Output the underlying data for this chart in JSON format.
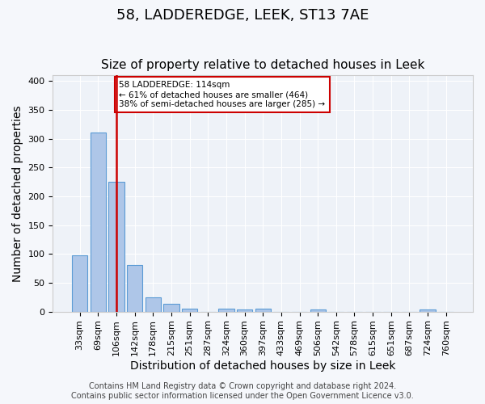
{
  "title": "58, LADDEREDGE, LEEK, ST13 7AE",
  "subtitle": "Size of property relative to detached houses in Leek",
  "xlabel": "Distribution of detached houses by size in Leek",
  "ylabel": "Number of detached properties",
  "bar_color": "#aec6e8",
  "bar_edge_color": "#5b9bd5",
  "background_color": "#eef2f8",
  "grid_color": "#ffffff",
  "categories": [
    "33sqm",
    "69sqm",
    "106sqm",
    "142sqm",
    "178sqm",
    "215sqm",
    "251sqm",
    "287sqm",
    "324sqm",
    "360sqm",
    "397sqm",
    "433sqm",
    "469sqm",
    "506sqm",
    "542sqm",
    "578sqm",
    "615sqm",
    "651sqm",
    "687sqm",
    "724sqm",
    "760sqm"
  ],
  "values": [
    98,
    311,
    225,
    81,
    25,
    14,
    5,
    0,
    5,
    4,
    5,
    0,
    0,
    3,
    0,
    0,
    0,
    0,
    0,
    3,
    0
  ],
  "vline_x": 2,
  "vline_color": "#cc0000",
  "ylim": [
    0,
    410
  ],
  "yticks": [
    0,
    50,
    100,
    150,
    200,
    250,
    300,
    350,
    400
  ],
  "annotation_title": "58 LADDEREDGE: 114sqm",
  "annotation_line1": "← 61% of detached houses are smaller (464)",
  "annotation_line2": "38% of semi-detached houses are larger (285) →",
  "footer_line1": "Contains HM Land Registry data © Crown copyright and database right 2024.",
  "footer_line2": "Contains public sector information licensed under the Open Government Licence v3.0.",
  "title_fontsize": 13,
  "subtitle_fontsize": 11,
  "xlabel_fontsize": 10,
  "ylabel_fontsize": 10,
  "tick_fontsize": 8,
  "footer_fontsize": 7
}
